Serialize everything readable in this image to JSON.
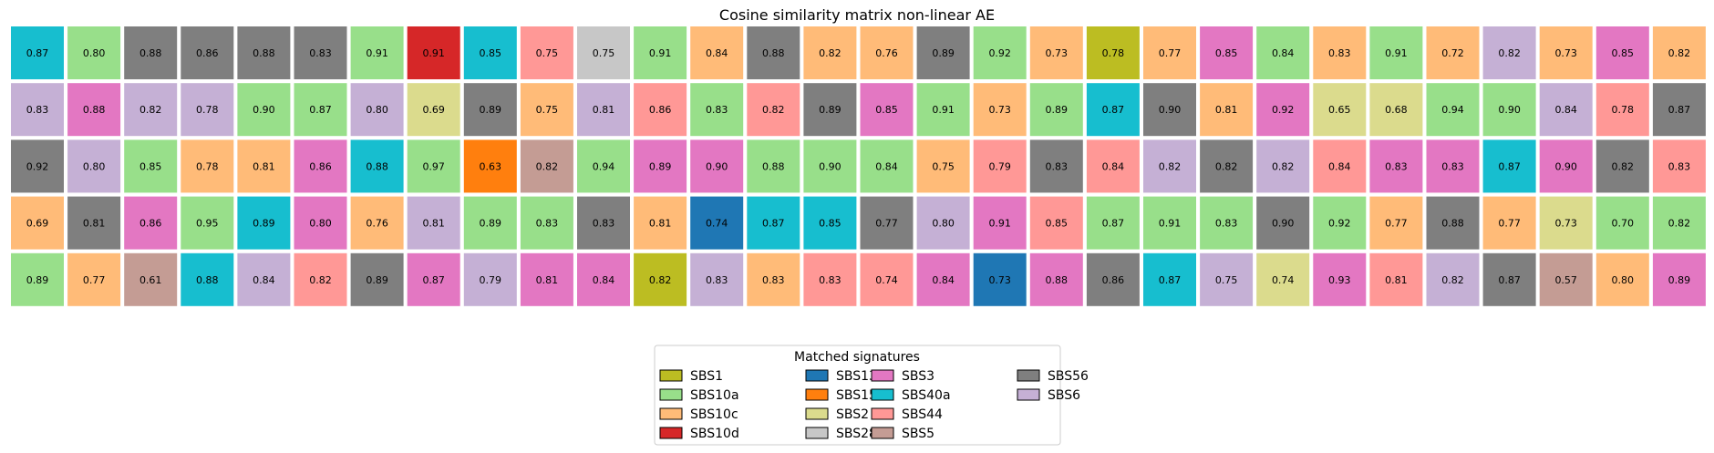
{
  "chart_data": {
    "type": "heatmap",
    "title": "Cosine similarity matrix non-linear AE",
    "n_rows": 5,
    "n_cols": 30,
    "values": [
      [
        "0.87",
        "0.80",
        "0.88",
        "0.86",
        "0.88",
        "0.83",
        "0.91",
        "0.91",
        "0.85",
        "0.75",
        "0.75",
        "0.91",
        "0.84",
        "0.88",
        "0.82",
        "0.76",
        "0.89",
        "0.92",
        "0.73",
        "0.78",
        "0.77",
        "0.85",
        "0.84",
        "0.83",
        "0.91",
        "0.72",
        "0.82",
        "0.73",
        "0.85",
        "0.82"
      ],
      [
        "0.83",
        "0.88",
        "0.82",
        "0.78",
        "0.90",
        "0.87",
        "0.80",
        "0.69",
        "0.89",
        "0.75",
        "0.81",
        "0.86",
        "0.83",
        "0.82",
        "0.89",
        "0.85",
        "0.91",
        "0.73",
        "0.89",
        "0.87",
        "0.90",
        "0.81",
        "0.92",
        "0.65",
        "0.68",
        "0.94",
        "0.90",
        "0.84",
        "0.78",
        "0.87"
      ],
      [
        "0.92",
        "0.80",
        "0.85",
        "0.78",
        "0.81",
        "0.86",
        "0.88",
        "0.97",
        "0.63",
        "0.82",
        "0.94",
        "0.89",
        "0.90",
        "0.88",
        "0.90",
        "0.84",
        "0.75",
        "0.79",
        "0.83",
        "0.84",
        "0.82",
        "0.82",
        "0.82",
        "0.84",
        "0.83",
        "0.83",
        "0.87",
        "0.90",
        "0.82",
        "0.83"
      ],
      [
        "0.69",
        "0.81",
        "0.86",
        "0.95",
        "0.89",
        "0.80",
        "0.76",
        "0.81",
        "0.89",
        "0.83",
        "0.83",
        "0.81",
        "0.74",
        "0.87",
        "0.85",
        "0.77",
        "0.80",
        "0.91",
        "0.85",
        "0.87",
        "0.91",
        "0.83",
        "0.90",
        "0.92",
        "0.77",
        "0.88",
        "0.77",
        "0.73",
        "0.70",
        "0.82"
      ],
      [
        "0.89",
        "0.77",
        "0.61",
        "0.88",
        "0.84",
        "0.82",
        "0.89",
        "0.87",
        "0.79",
        "0.81",
        "0.84",
        "0.82",
        "0.83",
        "0.83",
        "0.83",
        "0.74",
        "0.84",
        "0.73",
        "0.88",
        "0.86",
        "0.87",
        "0.75",
        "0.74",
        "0.93",
        "0.81",
        "0.82",
        "0.87",
        "0.57",
        "0.80",
        "0.89"
      ]
    ],
    "signatures": [
      [
        "SBS40a",
        "SBS10a",
        "SBS56",
        "SBS56",
        "SBS56",
        "SBS56",
        "SBS10a",
        "SBS10d",
        "SBS40a",
        "SBS44",
        "SBS28",
        "SBS10a",
        "SBS10c",
        "SBS56",
        "SBS10c",
        "SBS10c",
        "SBS56",
        "SBS10a",
        "SBS10c",
        "SBS1",
        "SBS10c",
        "SBS3",
        "SBS10a",
        "SBS10c",
        "SBS10a",
        "SBS10c",
        "SBS6",
        "SBS10c",
        "SBS3",
        "SBS10c"
      ],
      [
        "SBS6",
        "SBS3",
        "SBS6",
        "SBS6",
        "SBS10a",
        "SBS10a",
        "SBS6",
        "SBS2",
        "SBS56",
        "SBS10c",
        "SBS6",
        "SBS44",
        "SBS10a",
        "SBS44",
        "SBS56",
        "SBS3",
        "SBS10a",
        "SBS10c",
        "SBS10a",
        "SBS40a",
        "SBS56",
        "SBS10c",
        "SBS3",
        "SBS2",
        "SBS2",
        "SBS10a",
        "SBS10a",
        "SBS6",
        "SBS44",
        "SBS56"
      ],
      [
        "SBS56",
        "SBS6",
        "SBS10a",
        "SBS10c",
        "SBS10c",
        "SBS3",
        "SBS40a",
        "SBS10a",
        "SBS15",
        "SBS5",
        "SBS10a",
        "SBS3",
        "SBS3",
        "SBS10a",
        "SBS10a",
        "SBS10a",
        "SBS10c",
        "SBS44",
        "SBS56",
        "SBS44",
        "SBS6",
        "SBS56",
        "SBS6",
        "SBS44",
        "SBS3",
        "SBS3",
        "SBS40a",
        "SBS3",
        "SBS56",
        "SBS44"
      ],
      [
        "SBS10c",
        "SBS56",
        "SBS3",
        "SBS10a",
        "SBS40a",
        "SBS3",
        "SBS10c",
        "SBS6",
        "SBS10a",
        "SBS10a",
        "SBS56",
        "SBS10c",
        "SBS13",
        "SBS40a",
        "SBS40a",
        "SBS56",
        "SBS6",
        "SBS3",
        "SBS44",
        "SBS10a",
        "SBS10a",
        "SBS10a",
        "SBS56",
        "SBS10a",
        "SBS10c",
        "SBS56",
        "SBS10c",
        "SBS2",
        "SBS10a",
        "SBS10a"
      ],
      [
        "SBS10a",
        "SBS10c",
        "SBS5",
        "SBS40a",
        "SBS6",
        "SBS44",
        "SBS56",
        "SBS3",
        "SBS6",
        "SBS3",
        "SBS3",
        "SBS1",
        "SBS6",
        "SBS10c",
        "SBS44",
        "SBS44",
        "SBS3",
        "SBS13",
        "SBS3",
        "SBS56",
        "SBS40a",
        "SBS6",
        "SBS2",
        "SBS3",
        "SBS44",
        "SBS6",
        "SBS56",
        "SBS5",
        "SBS10c",
        "SBS3"
      ]
    ],
    "legend": {
      "title": "Matched signatures",
      "placement": "bottom-center",
      "columns": 4,
      "entries": [
        {
          "name": "SBS1",
          "color": "#bcbd22"
        },
        {
          "name": "SBS10a",
          "color": "#98df8a"
        },
        {
          "name": "SBS10c",
          "color": "#ffbb78"
        },
        {
          "name": "SBS10d",
          "color": "#d62728"
        },
        {
          "name": "SBS13",
          "color": "#1f77b4"
        },
        {
          "name": "SBS15",
          "color": "#ff7f0e"
        },
        {
          "name": "SBS2",
          "color": "#dbdb8d"
        },
        {
          "name": "SBS28",
          "color": "#c7c7c7"
        },
        {
          "name": "SBS3",
          "color": "#e377c2"
        },
        {
          "name": "SBS40a",
          "color": "#17becf"
        },
        {
          "name": "SBS44",
          "color": "#ff9896"
        },
        {
          "name": "SBS5",
          "color": "#c49c94"
        },
        {
          "name": "SBS56",
          "color": "#7f7f7f"
        },
        {
          "name": "SBS6",
          "color": "#c5b0d5"
        }
      ]
    },
    "grid": false
  }
}
